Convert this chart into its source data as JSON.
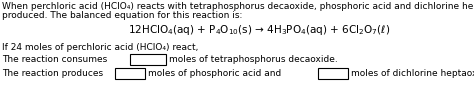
{
  "bg_color": "#ffffff",
  "text_color": "#000000",
  "line1": "When perchloric acid (HClO₄) reacts with tetraphosphorus decaoxide, phosphoric acid and dichlorine heptaoxide are",
  "line2": "produced. The balanced equation for this reaction is:",
  "equation": "12HClO$_4$(aq) + P$_4$O$_{10}$(s) → 4H$_3$PO$_4$(aq) + 6Cl$_2$O$_7$(ℓ)",
  "line4": "If 24 moles of perchloric acid (HClO₄) react,",
  "line5a": "The reaction consumes",
  "line5b": "moles of tetraphosphorus decaoxide.",
  "line6a": "The reaction produces",
  "line6b": "moles of phosphoric acid and",
  "line6c": "moles of dichlorine heptaoxide.",
  "body_fontsize": 6.5,
  "eq_fontsize": 7.5,
  "fig_width": 4.74,
  "fig_height": 1.08,
  "dpi": 100
}
